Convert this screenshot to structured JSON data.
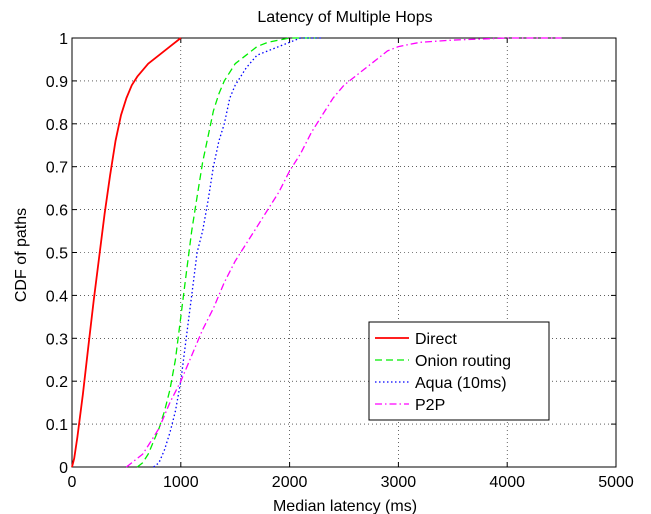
{
  "chart_data": {
    "type": "line",
    "title": "Latency of Multiple Hops",
    "xlabel": "Median latency (ms)",
    "ylabel": "CDF of paths",
    "xlim": [
      0,
      5000
    ],
    "ylim": [
      0,
      1
    ],
    "x_ticks": [
      "0",
      "1000",
      "2000",
      "3000",
      "4000",
      "5000"
    ],
    "y_ticks": [
      "0",
      "0.1",
      "0.2",
      "0.3",
      "0.4",
      "0.5",
      "0.6",
      "0.7",
      "0.8",
      "0.9",
      "1"
    ],
    "grid": true,
    "legend_position": "bottom-right",
    "series": [
      {
        "name": "Direct",
        "color": "#ff0000",
        "style": "solid",
        "points": [
          [
            0,
            0
          ],
          [
            20,
            0.02
          ],
          [
            50,
            0.07
          ],
          [
            100,
            0.17
          ],
          [
            150,
            0.28
          ],
          [
            200,
            0.39
          ],
          [
            250,
            0.49
          ],
          [
            300,
            0.59
          ],
          [
            350,
            0.68
          ],
          [
            400,
            0.76
          ],
          [
            450,
            0.82
          ],
          [
            500,
            0.86
          ],
          [
            550,
            0.89
          ],
          [
            600,
            0.91
          ],
          [
            700,
            0.94
          ],
          [
            800,
            0.96
          ],
          [
            900,
            0.98
          ],
          [
            1000,
            1.0
          ]
        ]
      },
      {
        "name": "Onion routing",
        "color": "#00ee00",
        "style": "dashed",
        "points": [
          [
            600,
            0
          ],
          [
            650,
            0.01
          ],
          [
            700,
            0.03
          ],
          [
            750,
            0.06
          ],
          [
            800,
            0.09
          ],
          [
            850,
            0.13
          ],
          [
            900,
            0.18
          ],
          [
            950,
            0.25
          ],
          [
            1000,
            0.35
          ],
          [
            1050,
            0.45
          ],
          [
            1100,
            0.55
          ],
          [
            1150,
            0.63
          ],
          [
            1200,
            0.71
          ],
          [
            1250,
            0.77
          ],
          [
            1300,
            0.83
          ],
          [
            1350,
            0.87
          ],
          [
            1400,
            0.9
          ],
          [
            1500,
            0.94
          ],
          [
            1600,
            0.96
          ],
          [
            1700,
            0.98
          ],
          [
            1800,
            0.99
          ],
          [
            2000,
            1.0
          ],
          [
            2250,
            1.0
          ]
        ]
      },
      {
        "name": "Aqua (10ms)",
        "color": "#0000ff",
        "style": "dotted",
        "points": [
          [
            750,
            0
          ],
          [
            800,
            0.01
          ],
          [
            850,
            0.04
          ],
          [
            900,
            0.08
          ],
          [
            950,
            0.13
          ],
          [
            1000,
            0.2
          ],
          [
            1050,
            0.3
          ],
          [
            1100,
            0.4
          ],
          [
            1150,
            0.5
          ],
          [
            1200,
            0.55
          ],
          [
            1250,
            0.62
          ],
          [
            1300,
            0.7
          ],
          [
            1350,
            0.76
          ],
          [
            1400,
            0.8
          ],
          [
            1450,
            0.86
          ],
          [
            1500,
            0.89
          ],
          [
            1600,
            0.93
          ],
          [
            1700,
            0.96
          ],
          [
            1800,
            0.97
          ],
          [
            1900,
            0.98
          ],
          [
            2000,
            0.99
          ],
          [
            2100,
            1.0
          ],
          [
            2300,
            1.0
          ]
        ]
      },
      {
        "name": "P2P",
        "color": "#ff00ff",
        "style": "dashdot",
        "points": [
          [
            500,
            0
          ],
          [
            550,
            0.01
          ],
          [
            600,
            0.02
          ],
          [
            650,
            0.03
          ],
          [
            700,
            0.05
          ],
          [
            800,
            0.09
          ],
          [
            900,
            0.15
          ],
          [
            1000,
            0.2
          ],
          [
            1100,
            0.26
          ],
          [
            1200,
            0.32
          ],
          [
            1300,
            0.37
          ],
          [
            1400,
            0.43
          ],
          [
            1500,
            0.48
          ],
          [
            1600,
            0.52
          ],
          [
            1700,
            0.56
          ],
          [
            1800,
            0.6
          ],
          [
            1900,
            0.64
          ],
          [
            2000,
            0.69
          ],
          [
            2100,
            0.73
          ],
          [
            2200,
            0.78
          ],
          [
            2300,
            0.82
          ],
          [
            2400,
            0.86
          ],
          [
            2500,
            0.89
          ],
          [
            2600,
            0.91
          ],
          [
            2700,
            0.93
          ],
          [
            2800,
            0.95
          ],
          [
            2900,
            0.97
          ],
          [
            3000,
            0.98
          ],
          [
            3200,
            0.99
          ],
          [
            3500,
            0.995
          ],
          [
            4000,
            1.0
          ],
          [
            4500,
            1.0
          ]
        ]
      }
    ]
  }
}
